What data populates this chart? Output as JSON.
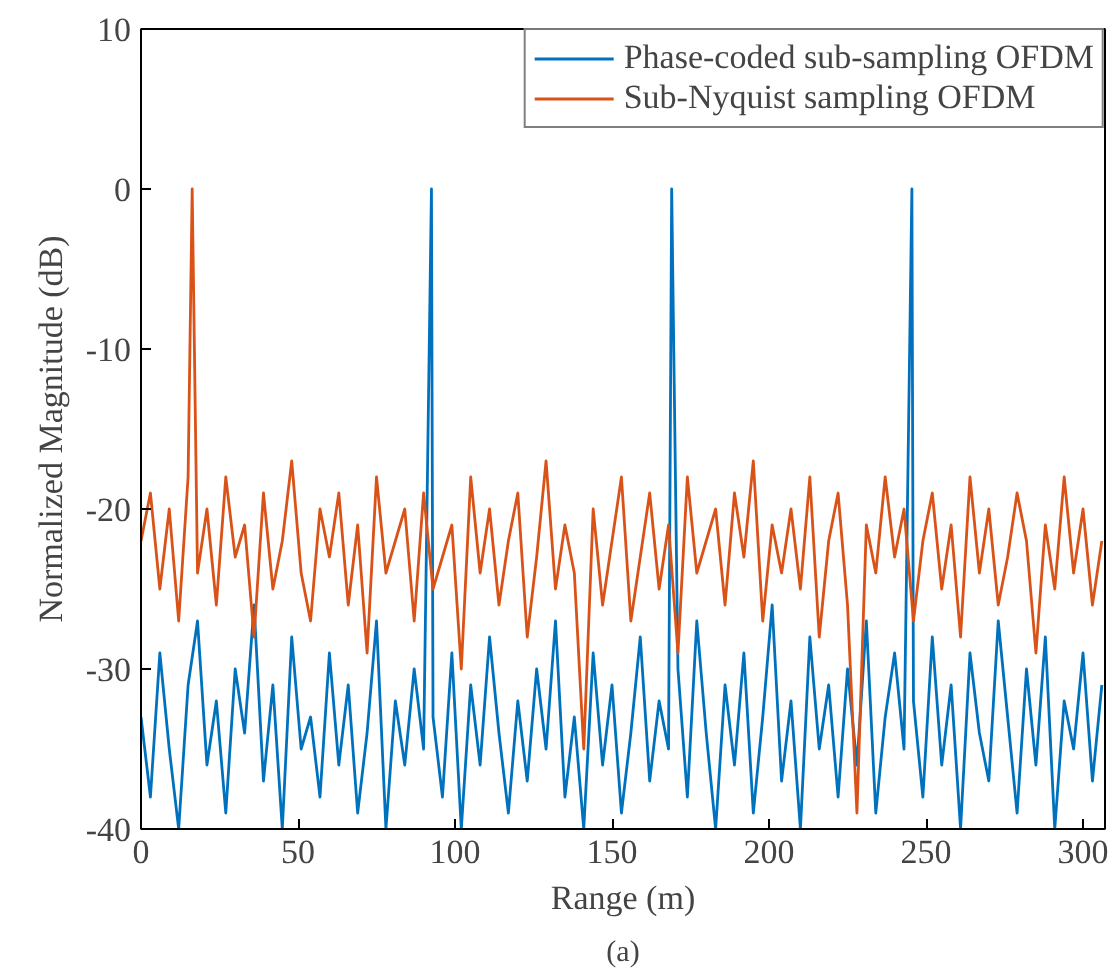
{
  "chart_data": {
    "type": "line",
    "xlabel": "Range (m)",
    "ylabel": "Normalized Magnitude (dB)",
    "annotations": [
      "(a)"
    ],
    "xlim": [
      0,
      307
    ],
    "ylim": [
      -40,
      10
    ],
    "xticks": [
      0,
      50,
      100,
      150,
      200,
      250,
      300
    ],
    "yticks": [
      -40,
      -30,
      -20,
      -10,
      0,
      10
    ],
    "grid": false,
    "legend": "top right",
    "marker": "none",
    "line_style": "solid",
    "series": [
      {
        "name": "Phase-coded sub-sampling OFDM",
        "color": "#0072bd",
        "x": [
          0,
          3,
          6,
          9,
          12,
          15,
          18,
          21,
          24,
          27,
          30,
          33,
          36,
          39,
          42,
          45,
          48,
          51,
          54,
          57,
          60,
          63,
          66,
          69,
          72,
          75,
          78,
          81,
          84,
          87,
          90,
          92.5,
          93,
          96,
          99,
          102,
          105,
          108,
          111,
          114,
          117,
          120,
          123,
          126,
          129,
          132,
          135,
          138,
          141,
          144,
          147,
          150,
          153,
          156,
          159,
          162,
          165,
          168,
          169,
          171,
          174,
          177,
          180,
          183,
          186,
          189,
          192,
          195,
          198,
          201,
          204,
          207,
          210,
          213,
          216,
          219,
          222,
          225,
          228,
          231,
          234,
          237,
          240,
          243,
          245.5,
          246,
          249,
          252,
          255,
          258,
          261,
          264,
          267,
          270,
          273,
          276,
          279,
          282,
          285,
          288,
          291,
          294,
          297,
          300,
          303,
          306
        ],
        "values": [
          -33,
          -38,
          -29,
          -35,
          -40,
          -31,
          -27,
          -36,
          -32,
          -39,
          -30,
          -34,
          -26,
          -37,
          -31,
          -40,
          -28,
          -35,
          -33,
          -38,
          -29,
          -36,
          -31,
          -39,
          -34,
          -27,
          -40,
          -32,
          -36,
          -30,
          -35,
          0,
          -33,
          -38,
          -29,
          -40,
          -31,
          -36,
          -28,
          -34,
          -39,
          -32,
          -37,
          -30,
          -35,
          -27,
          -38,
          -33,
          -40,
          -29,
          -36,
          -31,
          -39,
          -34,
          -28,
          -37,
          -32,
          -35,
          0,
          -30,
          -38,
          -27,
          -34,
          -40,
          -31,
          -36,
          -29,
          -39,
          -33,
          -26,
          -37,
          -32,
          -40,
          -28,
          -35,
          -31,
          -38,
          -30,
          -36,
          -27,
          -39,
          -33,
          -29,
          -35,
          0,
          -32,
          -38,
          -28,
          -36,
          -31,
          -40,
          -29,
          -34,
          -37,
          -27,
          -33,
          -39,
          -30,
          -36,
          -28,
          -40,
          -32,
          -35,
          -29,
          -37,
          -31
        ]
      },
      {
        "name": "Sub-Nyquist sampling OFDM",
        "color": "#d95319",
        "x": [
          0,
          3,
          6,
          9,
          12,
          15,
          16.3,
          18,
          21,
          24,
          27,
          30,
          33,
          36,
          39,
          42,
          45,
          48,
          51,
          54,
          57,
          60,
          63,
          66,
          69,
          72,
          75,
          78,
          81,
          84,
          87,
          90,
          93,
          96,
          99,
          102,
          105,
          108,
          111,
          114,
          117,
          120,
          123,
          126,
          129,
          132,
          135,
          138,
          141,
          144,
          147,
          150,
          153,
          156,
          159,
          162,
          165,
          168,
          171,
          174,
          177,
          180,
          183,
          186,
          189,
          192,
          195,
          198,
          201,
          204,
          207,
          210,
          213,
          216,
          219,
          222,
          225,
          228,
          231,
          234,
          237,
          240,
          243,
          246,
          249,
          252,
          255,
          258,
          261,
          264,
          267,
          270,
          273,
          276,
          279,
          282,
          285,
          288,
          291,
          294,
          297,
          300,
          303,
          306
        ],
        "values": [
          -22,
          -19,
          -25,
          -20,
          -27,
          -18,
          0,
          -24,
          -20,
          -26,
          -18,
          -23,
          -21,
          -28,
          -19,
          -25,
          -22,
          -17,
          -24,
          -27,
          -20,
          -23,
          -19,
          -26,
          -21,
          -29,
          -18,
          -24,
          -22,
          -20,
          -27,
          -19,
          -25,
          -23,
          -21,
          -30,
          -18,
          -24,
          -20,
          -26,
          -22,
          -19,
          -28,
          -23,
          -17,
          -25,
          -21,
          -24,
          -35,
          -20,
          -26,
          -22,
          -18,
          -27,
          -23,
          -19,
          -25,
          -21,
          -29,
          -18,
          -24,
          -22,
          -20,
          -26,
          -19,
          -23,
          -17,
          -27,
          -21,
          -24,
          -20,
          -25,
          -18,
          -28,
          -22,
          -19,
          -26,
          -39,
          -21,
          -24,
          -18,
          -23,
          -20,
          -27,
          -22,
          -19,
          -25,
          -21,
          -28,
          -18,
          -24,
          -20,
          -26,
          -23,
          -19,
          -22,
          -29,
          -21,
          -25,
          -18,
          -24,
          -20,
          -26,
          -22
        ]
      }
    ]
  }
}
